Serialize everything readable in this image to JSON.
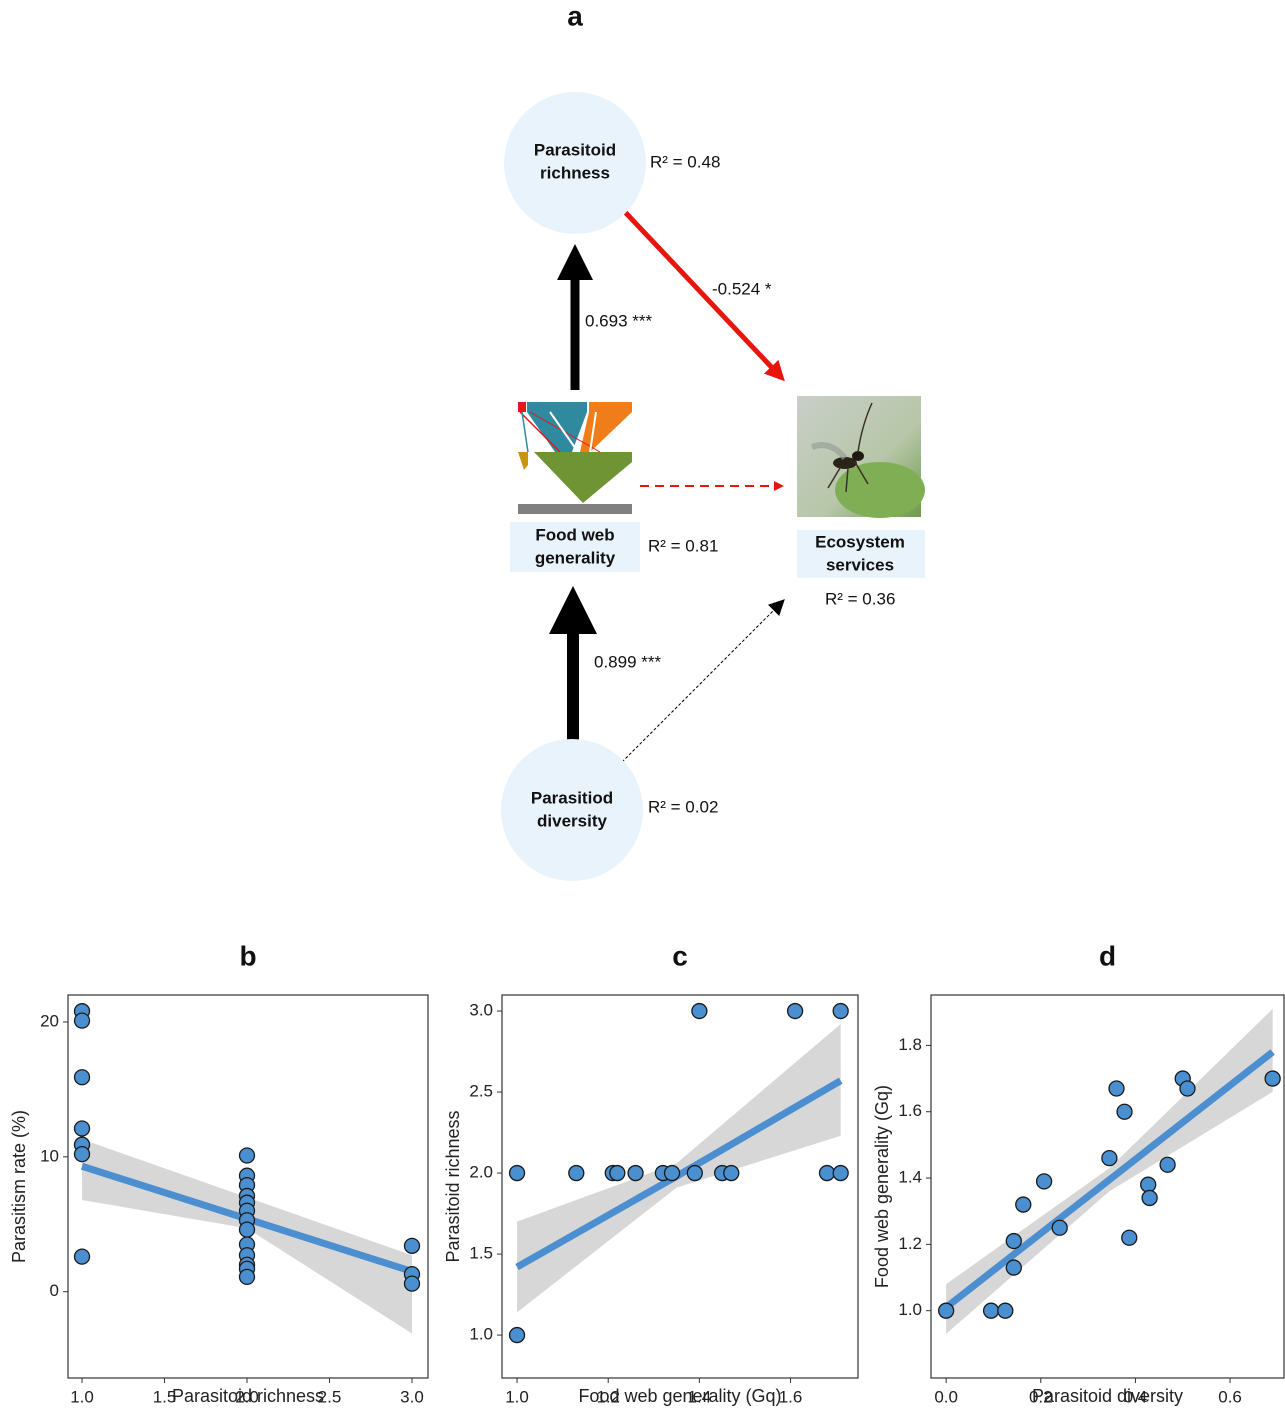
{
  "diagram": {
    "title": "a",
    "nodes": [
      {
        "label": [
          "Parasitoid",
          "richness"
        ],
        "r2": "R² = 0.48"
      },
      {
        "label": [
          "Food web",
          "generality"
        ],
        "r2": "R² = 0.81"
      },
      {
        "label": [
          "Ecosystem",
          "services"
        ],
        "r2": "R² = 0.36"
      },
      {
        "label": [
          "Parasitiod",
          "diversity"
        ],
        "r2": "R² = 0.02"
      }
    ],
    "edges": [
      {
        "label": "0.693 ***"
      },
      {
        "label": "-0.524 *"
      },
      {
        "label": "0.899 ***"
      }
    ]
  },
  "chart_data": [
    {
      "type": "scatter",
      "title": "b",
      "x_label": "Parasitoid richness",
      "y_label": "Parasitism rate (%)",
      "xlim": [
        0.915,
        3.097
      ],
      "ylim": [
        -6.4,
        22.0
      ],
      "xticks": [
        {
          "value": 1,
          "label": "1.0"
        },
        1.5,
        {
          "value": 2,
          "label": "2.0"
        },
        2.5,
        {
          "value": 3,
          "label": "3.0"
        }
      ],
      "yticks": [
        0,
        10,
        20
      ],
      "color": "#4a8fd0",
      "x": [
        1,
        1,
        1,
        1,
        1,
        1,
        1,
        2,
        2,
        2,
        2,
        2,
        2,
        2,
        2,
        2,
        2,
        2,
        2,
        2,
        3,
        3,
        3
      ],
      "values": [
        20.8,
        20.1,
        15.9,
        12.1,
        10.9,
        10.2,
        2.6,
        10.1,
        8.6,
        7.9,
        7.1,
        6.6,
        6.0,
        5.3,
        4.6,
        3.5,
        2.7,
        2.0,
        1.7,
        1.1,
        3.4,
        1.3,
        0.6
      ],
      "fit": {
        "color": "#4b8fd1",
        "band_color": "#d3d3d3",
        "x": [
          1,
          2,
          3
        ],
        "values": [
          9.3,
          5.4,
          1.5
        ],
        "lower": [
          6.8,
          4.7,
          -3.1
        ],
        "upper": [
          11.3,
          7.0,
          2.7
        ]
      }
    },
    {
      "type": "scatter",
      "title": "c",
      "x_label": "Food web generality (Gq)",
      "y_label": "Parasitoid richness",
      "xlim": [
        0.967,
        1.748
      ],
      "ylim": [
        0.735,
        3.099
      ],
      "xticks": [
        {
          "value": 1,
          "label": "1.0"
        },
        1.2,
        1.4,
        1.6
      ],
      "yticks": [
        {
          "value": 1,
          "label": "1.0"
        },
        1.5,
        {
          "value": 2,
          "label": "2.0"
        },
        2.5,
        {
          "value": 3,
          "label": "3.0"
        }
      ],
      "color": "#4a8fd0",
      "x": [
        1.0,
        1.0,
        1.13,
        1.21,
        1.22,
        1.26,
        1.32,
        1.34,
        1.39,
        1.4,
        1.45,
        1.47,
        1.61,
        1.68,
        1.71,
        1.71
      ],
      "values": [
        1,
        2,
        2,
        2,
        2,
        2,
        2,
        2,
        2,
        3,
        2,
        2,
        3,
        2,
        2,
        3
      ],
      "fit": {
        "color": "#4b8fd1",
        "band_color": "#d3d3d3",
        "x": [
          1.0,
          1.35,
          1.71
        ],
        "values": [
          1.42,
          1.98,
          2.57
        ],
        "lower": [
          1.14,
          1.91,
          2.23
        ],
        "upper": [
          1.7,
          2.06,
          2.92
        ]
      }
    },
    {
      "type": "scatter",
      "title": "d",
      "x_label": "Parasitoid diversity",
      "y_label": "Food web generality (Gq)",
      "xlim": [
        -0.032,
        0.714
      ],
      "ylim": [
        0.797,
        1.952
      ],
      "xticks": [
        {
          "value": 0,
          "label": "0.0"
        },
        0.2,
        0.4,
        0.6
      ],
      "yticks": [
        {
          "value": 1,
          "label": "1.0"
        },
        1.2,
        1.4,
        1.6,
        1.8
      ],
      "color": "#4a8fd0",
      "x": [
        0,
        0.095,
        0.125,
        0.143,
        0.143,
        0.163,
        0.207,
        0.24,
        0.345,
        0.36,
        0.377,
        0.387,
        0.427,
        0.43,
        0.468,
        0.5,
        0.51,
        0.69
      ],
      "values": [
        1.0,
        1.0,
        1.0,
        1.13,
        1.21,
        1.32,
        1.39,
        1.25,
        1.46,
        1.67,
        1.6,
        1.22,
        1.38,
        1.34,
        1.44,
        1.7,
        1.67,
        1.7
      ],
      "fit": {
        "color": "#4b8fd1",
        "band_color": "#d3d3d3",
        "x": [
          0,
          0.345,
          0.69
        ],
        "values": [
          1.01,
          1.395,
          1.78
        ],
        "lower": [
          0.93,
          1.36,
          1.66
        ],
        "upper": [
          1.08,
          1.43,
          1.91
        ]
      }
    }
  ]
}
